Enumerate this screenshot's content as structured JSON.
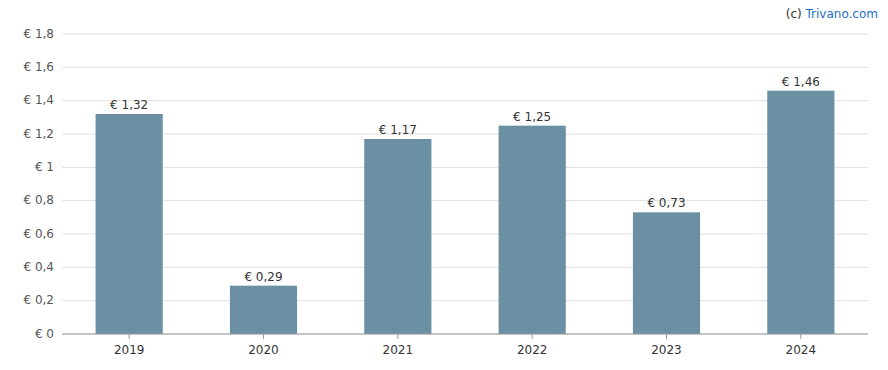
{
  "chart_data": {
    "type": "bar",
    "categories": [
      "2019",
      "2020",
      "2021",
      "2022",
      "2023",
      "2024"
    ],
    "values": [
      1.32,
      0.29,
      1.17,
      1.25,
      0.73,
      1.46
    ],
    "value_labels": [
      "€ 1,32",
      "€ 0,29",
      "€ 1,17",
      "€ 1,25",
      "€ 0,73",
      "€ 1,46"
    ],
    "data_labels": true,
    "color": "#6b8fa3",
    "ylim": [
      0,
      1.8
    ],
    "yticks": [
      {
        "value": 0,
        "label": "€ 0"
      },
      {
        "value": 0.2,
        "label": "€ 0,2"
      },
      {
        "value": 0.4,
        "label": "€ 0,4"
      },
      {
        "value": 0.6,
        "label": "€ 0,6"
      },
      {
        "value": 0.8,
        "label": "€ 0,8"
      },
      {
        "value": 1.0,
        "label": "€ 1"
      },
      {
        "value": 1.2,
        "label": "€ 1,2"
      },
      {
        "value": 1.4,
        "label": "€ 1,4"
      },
      {
        "value": 1.6,
        "label": "€ 1,6"
      },
      {
        "value": 1.8,
        "label": "€ 1,8"
      }
    ],
    "grid": true,
    "annotations": [
      "(c) ",
      "Trivano.com"
    ]
  }
}
